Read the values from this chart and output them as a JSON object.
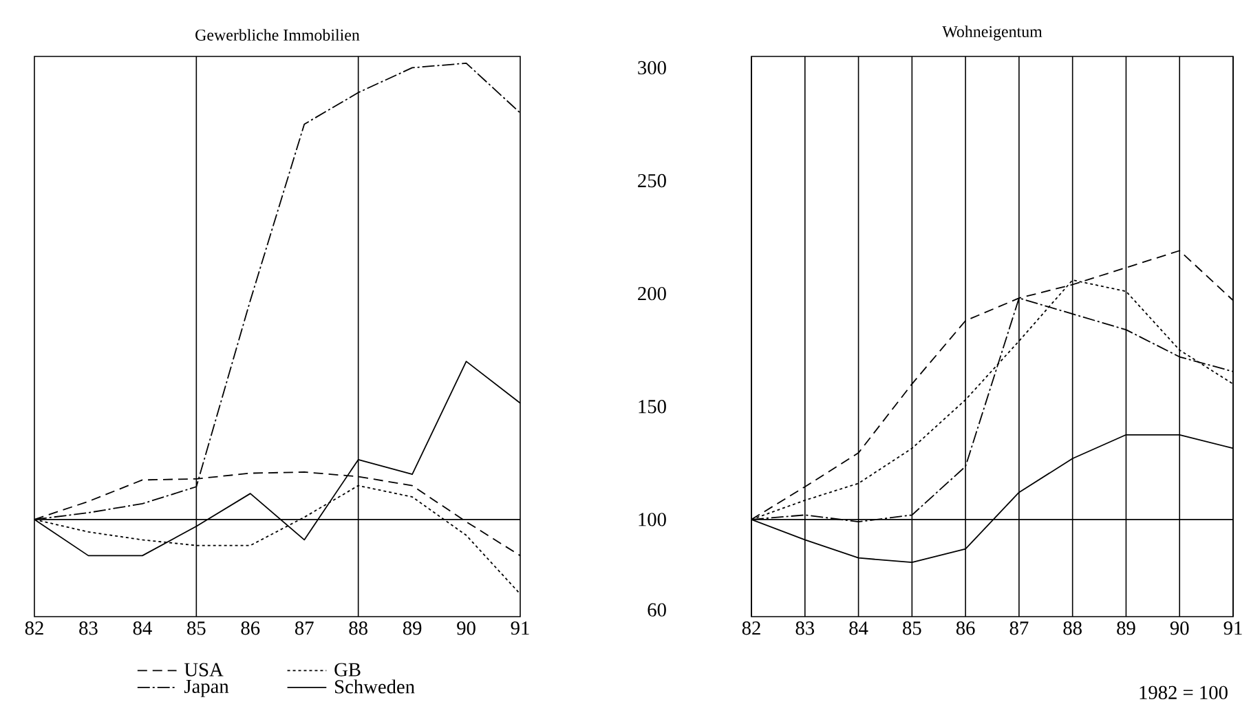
{
  "chart_data": [
    {
      "type": "line",
      "title": "Gewerbliche Immobilien",
      "x": [
        82,
        83,
        84,
        85,
        86,
        87,
        88,
        89,
        90,
        91
      ],
      "xlim": [
        82,
        91
      ],
      "xticks": [
        82,
        83,
        84,
        85,
        86,
        87,
        88,
        89,
        90,
        91
      ],
      "ylim": [
        57,
        305
      ],
      "yticks": [
        60,
        100,
        150,
        200,
        250,
        300
      ],
      "tick_labels": "x",
      "legend": "bottom",
      "ref_lines": [
        {
          "axis": "x",
          "value": 85
        },
        {
          "axis": "x",
          "value": 88
        },
        {
          "axis": "y",
          "value": 100
        }
      ],
      "series": [
        {
          "name": "USA",
          "color": "#000000",
          "line_style": "dashed",
          "values": [
            100,
            108,
            117.5,
            118,
            120.5,
            121,
            119,
            115,
            99,
            84
          ]
        },
        {
          "name": "GB",
          "color": "#000000",
          "line_style": "dotted",
          "values": [
            100,
            94.5,
            91,
            88.5,
            88.5,
            101,
            115,
            110,
            93,
            67
          ]
        },
        {
          "name": "Japan",
          "color": "#000000",
          "line_style": "dashdot",
          "values": [
            100,
            103,
            107,
            114.5,
            197,
            275,
            289,
            300,
            302,
            280
          ]
        },
        {
          "name": "Schweden",
          "color": "#000000",
          "line_style": "solid",
          "values": [
            100,
            84,
            84,
            97,
            111.5,
            91,
            126.5,
            120,
            170,
            151.5
          ]
        }
      ]
    },
    {
      "type": "line",
      "title": "Wohneigentum",
      "x": [
        82,
        83,
        84,
        85,
        86,
        87,
        88,
        89,
        90,
        91
      ],
      "xlim": [
        82,
        91
      ],
      "xticks": [
        82,
        83,
        84,
        85,
        86,
        87,
        88,
        89,
        90,
        91
      ],
      "ylim": [
        57,
        305
      ],
      "yticks": [
        60,
        100,
        150,
        200,
        250,
        300
      ],
      "grid": "x",
      "annotations": [
        "1982 = 100"
      ],
      "ref_lines": [
        {
          "axis": "y",
          "value": 100
        }
      ],
      "series": [
        {
          "color": "#000000",
          "line_style": "dashed",
          "values": [
            100,
            114.5,
            129.5,
            160,
            188,
            198,
            204,
            211.5,
            219,
            197
          ]
        },
        {
          "color": "#000000",
          "line_style": "dotted",
          "values": [
            100,
            108.5,
            116,
            131.5,
            153,
            179,
            206,
            201,
            175,
            160
          ]
        },
        {
          "color": "#000000",
          "line_style": "dashdot",
          "values": [
            100,
            102,
            99,
            102,
            123.5,
            198,
            191,
            184,
            172,
            165.5
          ]
        },
        {
          "color": "#000000",
          "line_style": "solid",
          "values": [
            100,
            91,
            83,
            81,
            87,
            112,
            127,
            137.5,
            137.5,
            131.5
          ]
        }
      ]
    }
  ]
}
